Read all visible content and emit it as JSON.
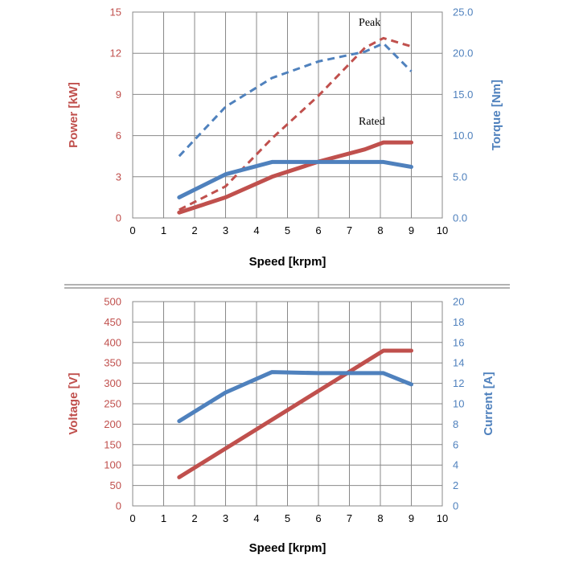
{
  "colors": {
    "red": "#c0504d",
    "blue": "#4f81bd",
    "grid": "#888888",
    "separator": "#999999"
  },
  "chart_data": [
    {
      "type": "line",
      "xlabel": "Speed [krpm]",
      "ylabel": "Power [kW]",
      "y2label": "Torque [Nm]",
      "xlim": [
        0,
        10
      ],
      "ylim": [
        0,
        15
      ],
      "y2lim": [
        0,
        25
      ],
      "x_ticks": [
        "0",
        "1",
        "2",
        "3",
        "4",
        "5",
        "6",
        "7",
        "8",
        "9",
        "10"
      ],
      "y_ticks": [
        "0",
        "3",
        "6",
        "9",
        "12",
        "15"
      ],
      "y2_ticks": [
        "0.0",
        "5.0",
        "10.0",
        "15.0",
        "20.0",
        "25.0"
      ],
      "grid": true,
      "annotations": [
        {
          "text": "Peak",
          "x": 7.3,
          "y": 14.0
        },
        {
          "text": "Rated",
          "x": 7.3,
          "y": 6.8
        }
      ],
      "series": [
        {
          "axis": "left",
          "style": "dashed",
          "color": "red",
          "x": [
            1.5,
            3,
            4.5,
            6,
            7.5,
            8.1,
            9
          ],
          "y": [
            0.6,
            2.3,
            5.8,
            8.9,
            12.4,
            13.1,
            12.5
          ]
        },
        {
          "axis": "left",
          "style": "solid",
          "color": "red",
          "x": [
            1.5,
            3,
            4.5,
            6,
            7.5,
            8.1,
            9
          ],
          "y": [
            0.4,
            1.5,
            3.0,
            4.1,
            5.0,
            5.5,
            5.5
          ]
        },
        {
          "axis": "right",
          "style": "dashed",
          "color": "blue",
          "x": [
            1.5,
            3,
            4.5,
            6,
            7.5,
            8.1,
            9
          ],
          "y": [
            7.5,
            13.5,
            17.0,
            19.0,
            20.2,
            21.2,
            17.8
          ]
        },
        {
          "axis": "right",
          "style": "solid",
          "color": "blue",
          "x": [
            1.5,
            3,
            4.5,
            6,
            7.5,
            8.1,
            9
          ],
          "y": [
            2.5,
            5.3,
            6.8,
            6.8,
            6.8,
            6.8,
            6.2
          ]
        }
      ]
    },
    {
      "type": "line",
      "xlabel": "Speed [krpm]",
      "ylabel": "Voltage [V]",
      "y2label": "Current [A]",
      "xlim": [
        0,
        10
      ],
      "ylim": [
        0,
        500
      ],
      "y2lim": [
        0,
        20
      ],
      "x_ticks": [
        "0",
        "1",
        "2",
        "3",
        "4",
        "5",
        "6",
        "7",
        "8",
        "9",
        "10"
      ],
      "y_ticks": [
        "0",
        "50",
        "100",
        "150",
        "200",
        "250",
        "300",
        "350",
        "400",
        "450",
        "500"
      ],
      "y2_ticks": [
        "0",
        "2",
        "4",
        "6",
        "8",
        "10",
        "12",
        "14",
        "16",
        "18",
        "20"
      ],
      "grid": true,
      "annotations": [],
      "series": [
        {
          "axis": "left",
          "style": "solid",
          "color": "red",
          "x": [
            1.5,
            8.1,
            9
          ],
          "y": [
            70,
            380,
            380
          ]
        },
        {
          "axis": "right",
          "style": "solid",
          "color": "blue",
          "x": [
            1.5,
            3,
            4.5,
            6,
            7.5,
            8.1,
            9
          ],
          "y": [
            8.3,
            11.1,
            13.1,
            13.0,
            13.0,
            13.0,
            11.9
          ]
        }
      ]
    }
  ]
}
